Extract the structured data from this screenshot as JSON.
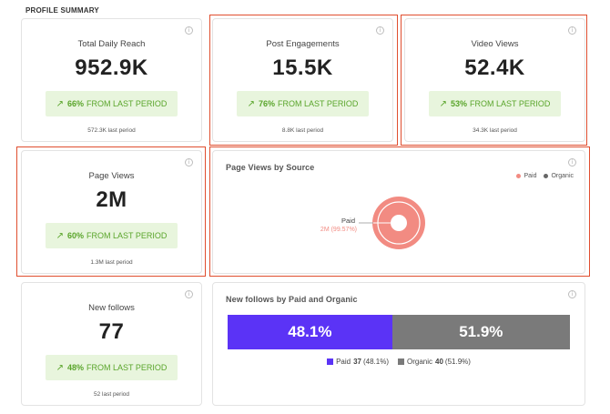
{
  "section_title": "PROFILE SUMMARY",
  "info_glyph": "i",
  "metrics": [
    {
      "title": "Total Daily Reach",
      "value": "952.9K",
      "change_pct": "66%",
      "change_text": "FROM LAST PERIOD",
      "last_period": "572.3K last period"
    },
    {
      "title": "Post Engagements",
      "value": "15.5K",
      "change_pct": "76%",
      "change_text": "FROM LAST PERIOD",
      "last_period": "8.8K last period"
    },
    {
      "title": "Video Views",
      "value": "52.4K",
      "change_pct": "53%",
      "change_text": "FROM LAST PERIOD",
      "last_period": "34.3K last period"
    },
    {
      "title": "Page Views",
      "value": "2M",
      "change_pct": "60%",
      "change_text": "FROM LAST PERIOD",
      "last_period": "1.3M last period"
    },
    {
      "title": "New follows",
      "value": "77",
      "change_pct": "48%",
      "change_text": "FROM LAST PERIOD",
      "last_period": "52 last period"
    }
  ],
  "page_views_by_source": {
    "title": "Page Views by Source",
    "legend": [
      {
        "label": "Paid",
        "color": "#f28b82"
      },
      {
        "label": "Organic",
        "color": "#666666"
      }
    ],
    "slice_label": "Paid",
    "slice_value": "2M (99.57%)"
  },
  "follows_by_paid_organic": {
    "title": "New follows by Paid and Organic",
    "paid_pct_label": "48.1%",
    "organic_pct_label": "51.9%",
    "legend_paid_name": "Paid",
    "legend_paid_value": "37",
    "legend_paid_pct": "(48.1%)",
    "legend_organic_name": "Organic",
    "legend_organic_value": "40",
    "legend_organic_pct": "(51.9%)"
  },
  "colors": {
    "paid_bar": "#5b33f6",
    "organic_bar": "#7a7a7a",
    "donut": "#f28b82",
    "positive_text": "#5aa52b",
    "positive_bg": "#e8f5dd",
    "highlight": "#e04e2f"
  },
  "chart_data": [
    {
      "type": "pie",
      "title": "Page Views by Source",
      "categories": [
        "Paid",
        "Organic"
      ],
      "values": [
        99.57,
        0.43
      ],
      "unit": "%"
    },
    {
      "type": "bar",
      "title": "New follows by Paid and Organic",
      "categories": [
        "Paid",
        "Organic"
      ],
      "values": [
        37,
        40
      ],
      "percentages": [
        48.1,
        51.9
      ],
      "stacked": true
    }
  ]
}
